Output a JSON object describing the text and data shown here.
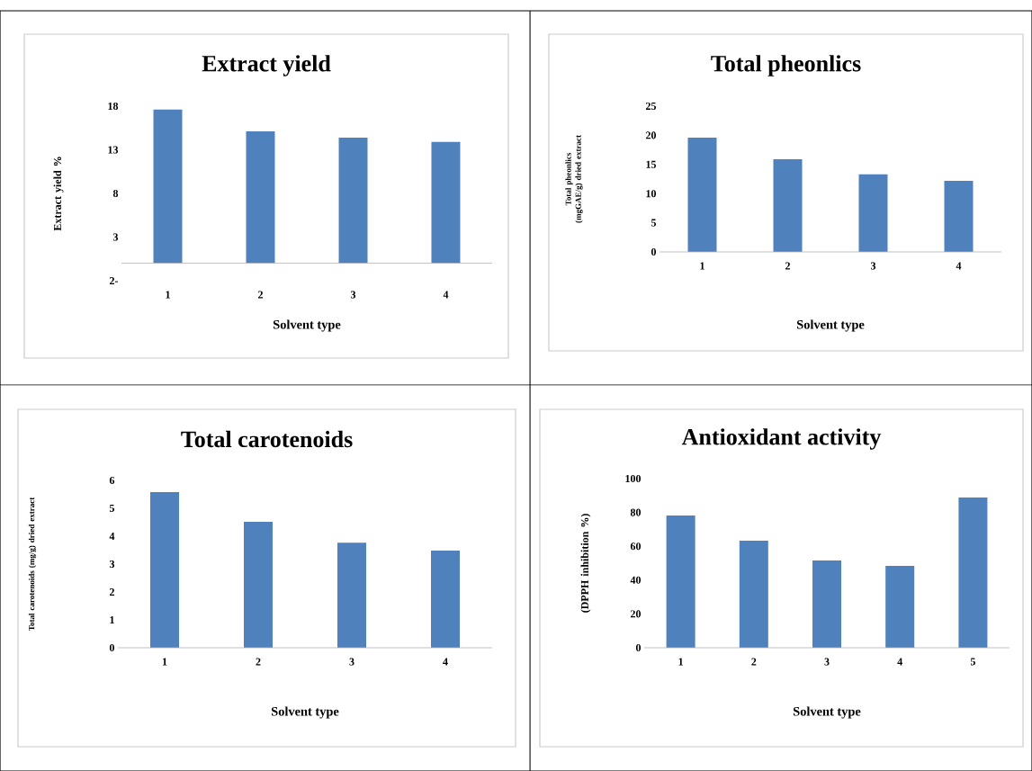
{
  "chart_data": [
    {
      "type": "bar",
      "title": "Extract yield",
      "xlabel": "Solvent type",
      "ylabel": "Extract yield %",
      "categories": [
        "1",
        "2",
        "3",
        "4"
      ],
      "values": [
        17.6,
        15.1,
        14.4,
        13.9
      ],
      "color": "#4f81bd",
      "ylim": [
        -2,
        18
      ],
      "yticks": [
        {
          "value": -2,
          "label": "2-"
        },
        3,
        8,
        13,
        18
      ]
    },
    {
      "type": "bar",
      "title": "Total pheonlics",
      "xlabel": "Solvent type",
      "ylabel": "Total pheonlics (mgGAE/g) dried extract",
      "categories": [
        "1",
        "2",
        "3",
        "4"
      ],
      "values": [
        19.6,
        15.9,
        13.3,
        12.2
      ],
      "color": "#4f81bd",
      "ylim": [
        0,
        25
      ],
      "yticks": [
        0,
        5,
        10,
        15,
        20,
        25
      ]
    },
    {
      "type": "bar",
      "title": "Total carotenoids",
      "xlabel": "Solvent type",
      "ylabel": "Total carotenoids (mg/g) dried extract",
      "categories": [
        "1",
        "2",
        "3",
        "4"
      ],
      "values": [
        5.58,
        4.52,
        3.77,
        3.48
      ],
      "color": "#4f81bd",
      "ylim": [
        0,
        6
      ],
      "yticks": [
        0,
        1,
        2,
        3,
        4,
        5,
        6
      ]
    },
    {
      "type": "bar",
      "title": "Antioxidant activity",
      "xlabel": "Solvent type",
      "ylabel": "(DPPH inhibition %)",
      "categories": [
        "1",
        "2",
        "3",
        "4",
        "5"
      ],
      "values": [
        78.2,
        63.3,
        51.6,
        48.4,
        88.8
      ],
      "color": "#4f81bd",
      "ylim": [
        0,
        100
      ],
      "yticks": [
        0,
        20,
        40,
        60,
        80,
        100
      ]
    }
  ]
}
